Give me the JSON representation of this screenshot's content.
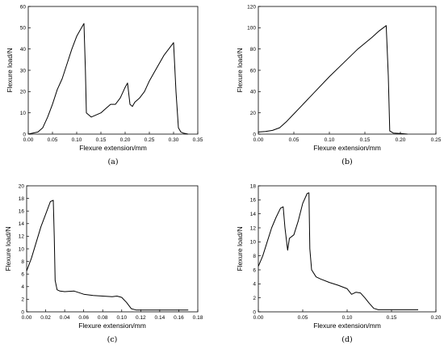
{
  "chart_data": [
    {
      "type": "line",
      "caption": "(a)",
      "xlabel": "Flexure extension/mm",
      "ylabel": "Flexure load/N",
      "xlim": [
        0,
        0.35
      ],
      "ylim": [
        0,
        60
      ],
      "xticks": [
        "0.00",
        "0.05",
        "0.10",
        "0.15",
        "0.20",
        "0.25",
        "0.30",
        "0.35"
      ],
      "yticks": [
        "0",
        "10",
        "20",
        "30",
        "40",
        "50",
        "60"
      ],
      "series": [
        {
          "x": [
            0,
            0.02,
            0.03,
            0.04,
            0.05,
            0.06,
            0.07,
            0.08,
            0.09,
            0.1,
            0.11,
            0.115,
            0.118,
            0.12,
            0.13,
            0.14,
            0.15,
            0.16,
            0.17,
            0.18,
            0.19,
            0.2,
            0.205,
            0.21,
            0.215,
            0.22,
            0.23,
            0.24,
            0.25,
            0.26,
            0.27,
            0.28,
            0.29,
            0.3,
            0.305,
            0.31,
            0.315,
            0.32,
            0.33
          ],
          "y": [
            0,
            1,
            3,
            8,
            14,
            21,
            26,
            33,
            40,
            46,
            50,
            52,
            30,
            10,
            8,
            9,
            10,
            12,
            14,
            14,
            17,
            22,
            24,
            14,
            13,
            15,
            17,
            20,
            25,
            29,
            33,
            37,
            40,
            43,
            20,
            3,
            1,
            0.5,
            0
          ]
        }
      ]
    },
    {
      "type": "line",
      "caption": "(b)",
      "xlabel": "Flexure extension/mm",
      "ylabel": "Flexure load/N",
      "xlim": [
        0,
        0.25
      ],
      "ylim": [
        0,
        120
      ],
      "xticks": [
        "0.00",
        "0.05",
        "0.10",
        "0.15",
        "0.20",
        "0.25"
      ],
      "yticks": [
        "0",
        "20",
        "40",
        "60",
        "80",
        "100",
        "120"
      ],
      "series": [
        {
          "x": [
            0,
            0.01,
            0.02,
            0.03,
            0.04,
            0.05,
            0.06,
            0.08,
            0.1,
            0.12,
            0.14,
            0.16,
            0.17,
            0.18,
            0.183,
            0.185,
            0.19,
            0.2,
            0.21
          ],
          "y": [
            2,
            2.5,
            3.5,
            6,
            12,
            19,
            26,
            40,
            54,
            67,
            80,
            91,
            97,
            102,
            55,
            3,
            1,
            0.5,
            0
          ]
        }
      ]
    },
    {
      "type": "line",
      "caption": "(c)",
      "xlabel": "Flexure extension/mm",
      "ylabel": "Flexure load/N",
      "xlim": [
        0,
        0.18
      ],
      "ylim": [
        0,
        20
      ],
      "xticks": [
        "0.00",
        "0.02",
        "0.04",
        "0.06",
        "0.08",
        "0.10",
        "0.12",
        "0.14",
        "0.16",
        "0.18"
      ],
      "yticks": [
        "0",
        "2",
        "4",
        "6",
        "8",
        "10",
        "12",
        "14",
        "16",
        "18",
        "20"
      ],
      "series": [
        {
          "x": [
            0,
            0.005,
            0.01,
            0.015,
            0.02,
            0.025,
            0.028,
            0.029,
            0.03,
            0.032,
            0.035,
            0.04,
            0.05,
            0.06,
            0.07,
            0.08,
            0.09,
            0.095,
            0.1,
            0.105,
            0.11,
            0.115,
            0.13,
            0.15,
            0.17
          ],
          "y": [
            6.5,
            8.5,
            11,
            13.5,
            15.5,
            17.5,
            17.7,
            12,
            5,
            3.5,
            3.3,
            3.2,
            3.3,
            2.8,
            2.6,
            2.5,
            2.4,
            2.5,
            2.3,
            1.5,
            0.5,
            0.3,
            0.3,
            0.3,
            0.3
          ]
        }
      ]
    },
    {
      "type": "line",
      "caption": "(d)",
      "xlabel": "Flexure extension/mm",
      "ylabel": "Flexure load/N",
      "xlim": [
        0,
        0.2
      ],
      "ylim": [
        0,
        18
      ],
      "xticks": [
        "0.00",
        "0.05",
        "0.10",
        "0.15",
        "0.20"
      ],
      "yticks": [
        "0",
        "2",
        "4",
        "6",
        "8",
        "10",
        "12",
        "14",
        "16",
        "18"
      ],
      "series": [
        {
          "x": [
            0,
            0.005,
            0.01,
            0.015,
            0.02,
            0.025,
            0.028,
            0.03,
            0.033,
            0.035,
            0.04,
            0.045,
            0.05,
            0.055,
            0.057,
            0.058,
            0.06,
            0.065,
            0.07,
            0.08,
            0.09,
            0.1,
            0.105,
            0.11,
            0.115,
            0.12,
            0.125,
            0.13,
            0.135,
            0.15,
            0.17,
            0.18
          ],
          "y": [
            6.5,
            8,
            10,
            12,
            13.5,
            14.8,
            15,
            12,
            8.8,
            10.5,
            11,
            13,
            15.5,
            16.9,
            17,
            9,
            6,
            5,
            4.7,
            4.2,
            3.8,
            3.3,
            2.5,
            2.8,
            2.7,
            2.0,
            1.2,
            0.5,
            0.3,
            0.3,
            0.3,
            0.3
          ]
        }
      ]
    }
  ]
}
